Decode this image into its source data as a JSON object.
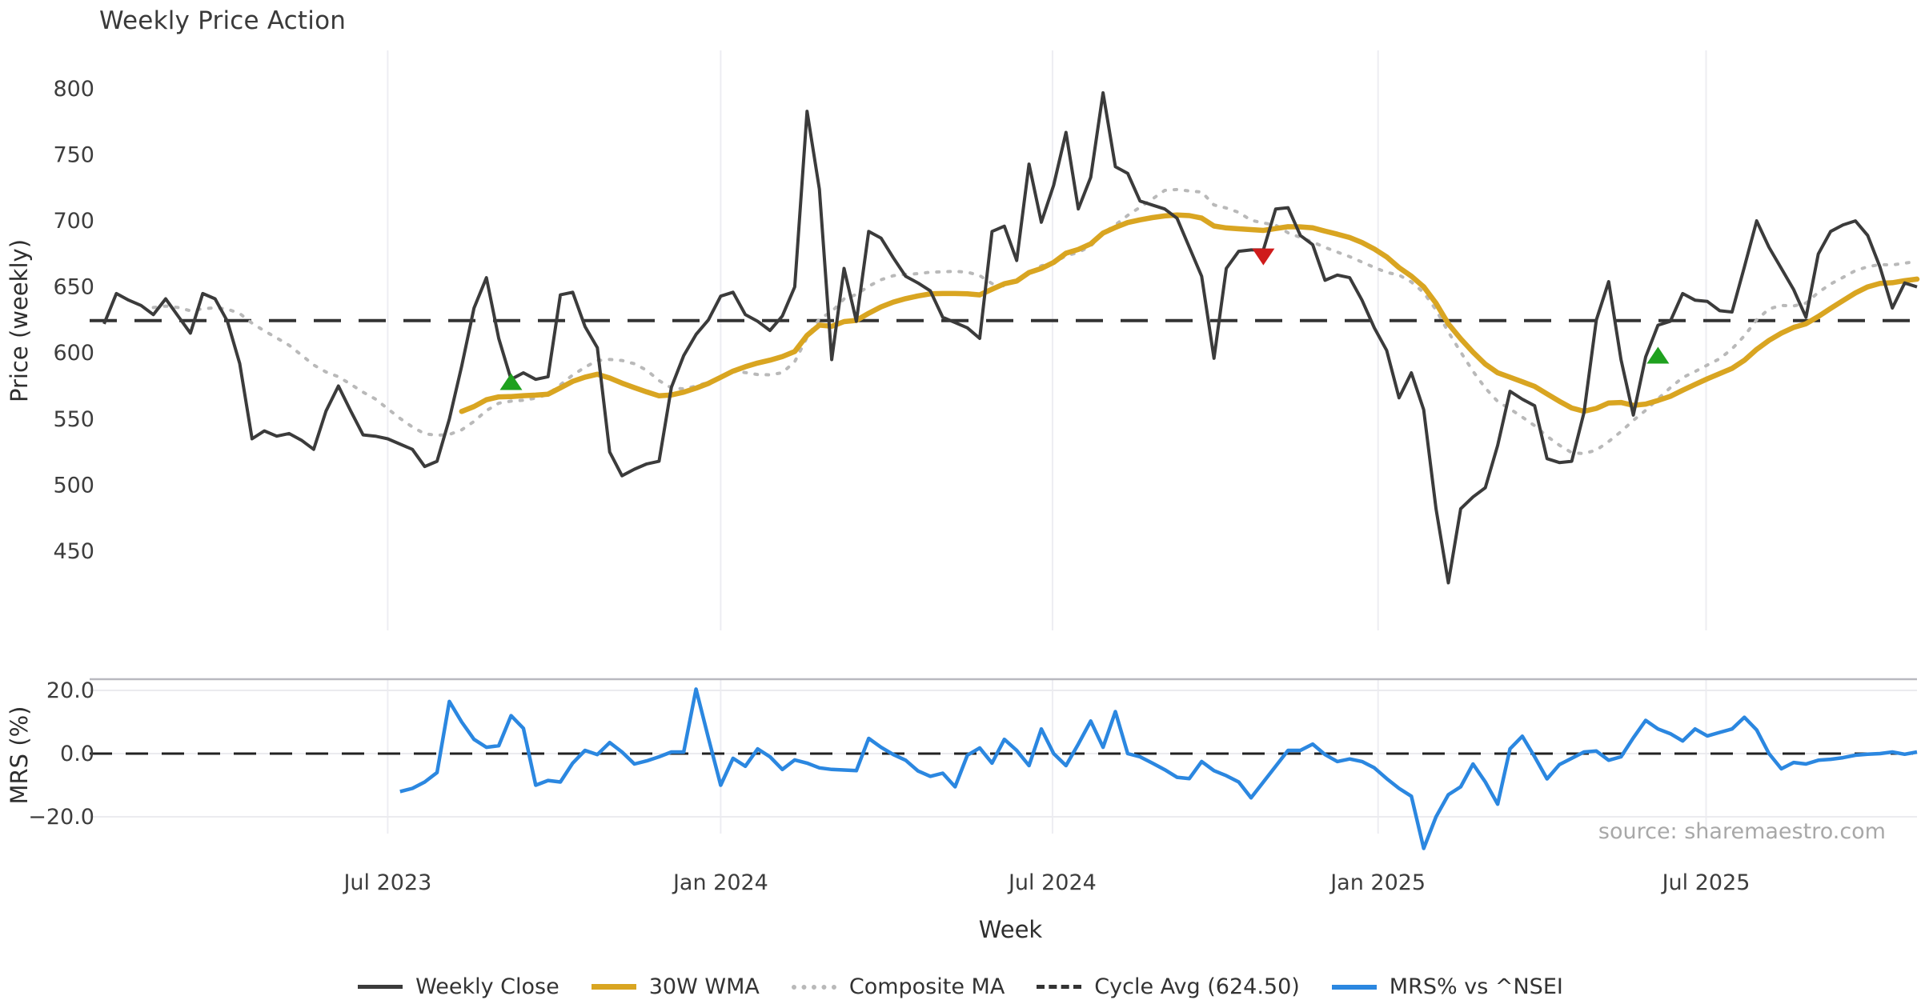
{
  "title": "Weekly Price Action",
  "source_note": "source: sharemaestro.com",
  "colors": {
    "close": "#3b3b3b",
    "wma": "#d9a521",
    "composite": "#b9b9b9",
    "cycle_avg": "#333333",
    "mrs": "#2b87e0",
    "buy_marker": "#1fa11f",
    "sell_marker": "#cf1b1b",
    "gridline": "#ededf2",
    "panel_spine": "#b9b9bf",
    "tick_text": "#3d3d3d",
    "source_text": "#a8a8a8"
  },
  "chart_data": {
    "type": "line",
    "title": "Weekly Price Action",
    "xlabel": "Week",
    "x_is_weekly": true,
    "n_weeks": 148,
    "xticks": [
      {
        "label": "Jul 2023",
        "week": 23
      },
      {
        "label": "Jan 2024",
        "week": 50
      },
      {
        "label": "Jul 2024",
        "week": 76.9
      },
      {
        "label": "Jan 2025",
        "week": 103.3
      },
      {
        "label": "Jul 2025",
        "week": 129.9
      }
    ],
    "panels": [
      {
        "name": "price",
        "ylabel": "Price (weekly)",
        "ylim": [
          390,
          829
        ],
        "yticks": [
          800,
          750,
          700,
          650,
          600,
          550,
          500,
          450
        ],
        "grid": "vertical-only"
      },
      {
        "name": "mrs",
        "ylabel": "MRS (%)",
        "ylim": [
          -32.5,
          23.5
        ],
        "yticks": [
          {
            "label": "20.0",
            "value": 20
          },
          {
            "label": "0.0",
            "value": 0
          },
          {
            "label": "−20.0",
            "value": -20
          }
        ],
        "zero_line_dashed": true
      }
    ],
    "legend_position": "bottom-center",
    "legend": [
      {
        "label": "Weekly Close",
        "style": "solid",
        "color_key": "close"
      },
      {
        "label": "30W WMA",
        "style": "solid",
        "color_key": "wma"
      },
      {
        "label": "Composite MA",
        "style": "dotted",
        "color_key": "composite"
      },
      {
        "label": "Cycle Avg (624.50)",
        "style": "dashed",
        "color_key": "cycle_avg"
      },
      {
        "label": "MRS% vs ^NSEI",
        "style": "solid",
        "color_key": "mrs"
      }
    ],
    "cycle_avg": 624.5,
    "weekly_close": [
      622,
      645,
      640,
      636,
      629,
      641,
      628,
      615,
      645,
      641,
      624,
      592,
      535,
      541,
      537,
      539,
      534,
      527,
      556,
      575,
      556,
      538,
      537,
      535,
      531,
      527,
      514,
      518,
      550,
      590,
      634,
      657,
      611,
      580,
      585,
      580,
      582,
      644,
      646,
      620,
      604,
      525,
      507,
      512,
      516,
      518,
      574,
      598,
      614,
      625,
      643,
      646,
      629,
      624,
      617,
      628,
      650,
      783,
      724,
      595,
      664,
      624,
      692,
      687,
      672,
      658,
      653,
      647,
      627,
      623,
      619,
      611,
      692,
      696,
      670,
      743,
      699,
      727,
      767,
      709,
      733,
      797,
      741,
      736,
      715,
      712,
      709,
      702,
      680,
      658,
      596,
      664,
      677,
      678,
      678,
      709,
      710,
      689,
      682,
      655,
      659,
      657,
      640,
      619,
      602,
      566,
      585,
      557,
      482,
      426,
      482,
      491,
      498,
      530,
      571,
      565,
      560,
      520,
      517,
      518,
      555,
      625,
      654,
      595,
      553,
      597,
      621,
      624,
      645,
      640,
      639,
      632,
      631,
      665,
      700,
      680,
      664,
      648,
      627,
      675,
      692,
      697,
      700,
      689,
      665,
      634,
      653,
      650
    ],
    "wma_30w": {
      "derived": "30-week linearly-weighted moving average of weekly_close",
      "window": 30
    },
    "composite_ma": {
      "derived": "15-week simple moving average of weekly_close (min 5 periods)",
      "window": 15,
      "min_periods": 5
    },
    "mrs_pct": {
      "start_week": 24,
      "values": [
        -12,
        -11,
        -9,
        -6,
        16.5,
        10,
        4.5,
        2,
        2.5,
        12,
        8,
        -10,
        -8.5,
        -9,
        -3,
        1,
        -0.3,
        3.5,
        0.5,
        -3.3,
        -2.3,
        -1,
        0.5,
        0.5,
        20.4,
        5,
        -10,
        -1.5,
        -4,
        1.5,
        -1,
        -5,
        -2,
        -3,
        -4.5,
        -5,
        -5.2,
        -5.4,
        4.8,
        2,
        -0.3,
        -2.1,
        -5.5,
        -7.2,
        -6.2,
        -10.5,
        -0.5,
        1.8,
        -3,
        4.5,
        1,
        -3.8,
        7.8,
        0,
        -3.8,
        3,
        10.3,
        2,
        13.3,
        0,
        -1,
        -3,
        -5.1,
        -7.5,
        -7.9,
        -2.5,
        -5.4,
        -7,
        -9,
        -14,
        -9,
        -4,
        1,
        1,
        3,
        -0.3,
        -2.5,
        -1.7,
        -2.5,
        -4.5,
        -7.9,
        -11,
        -13.5,
        -30,
        -20,
        -13,
        -10.5,
        -3.3,
        -9,
        -16,
        1.5,
        5.5,
        -1,
        -8,
        -3.5,
        -1.5,
        0.5,
        0.8,
        -2.1,
        -1,
        5,
        10.5,
        7.8,
        6.3,
        4,
        7.8,
        5.6,
        6.7,
        7.8,
        11.5,
        7.5,
        0,
        -4.8,
        -2.8,
        -3.3,
        -2.1,
        -1.8,
        -1.3,
        -0.5,
        -0.2,
        0,
        0.5,
        -0.2,
        0.5
      ]
    },
    "markers": [
      {
        "type": "buy",
        "shape": "triangle-up",
        "week": 33,
        "value": 578
      },
      {
        "type": "sell",
        "shape": "triangle-down",
        "week": 94,
        "value": 673
      },
      {
        "type": "buy",
        "shape": "triangle-up",
        "week": 126,
        "value": 598
      }
    ]
  }
}
